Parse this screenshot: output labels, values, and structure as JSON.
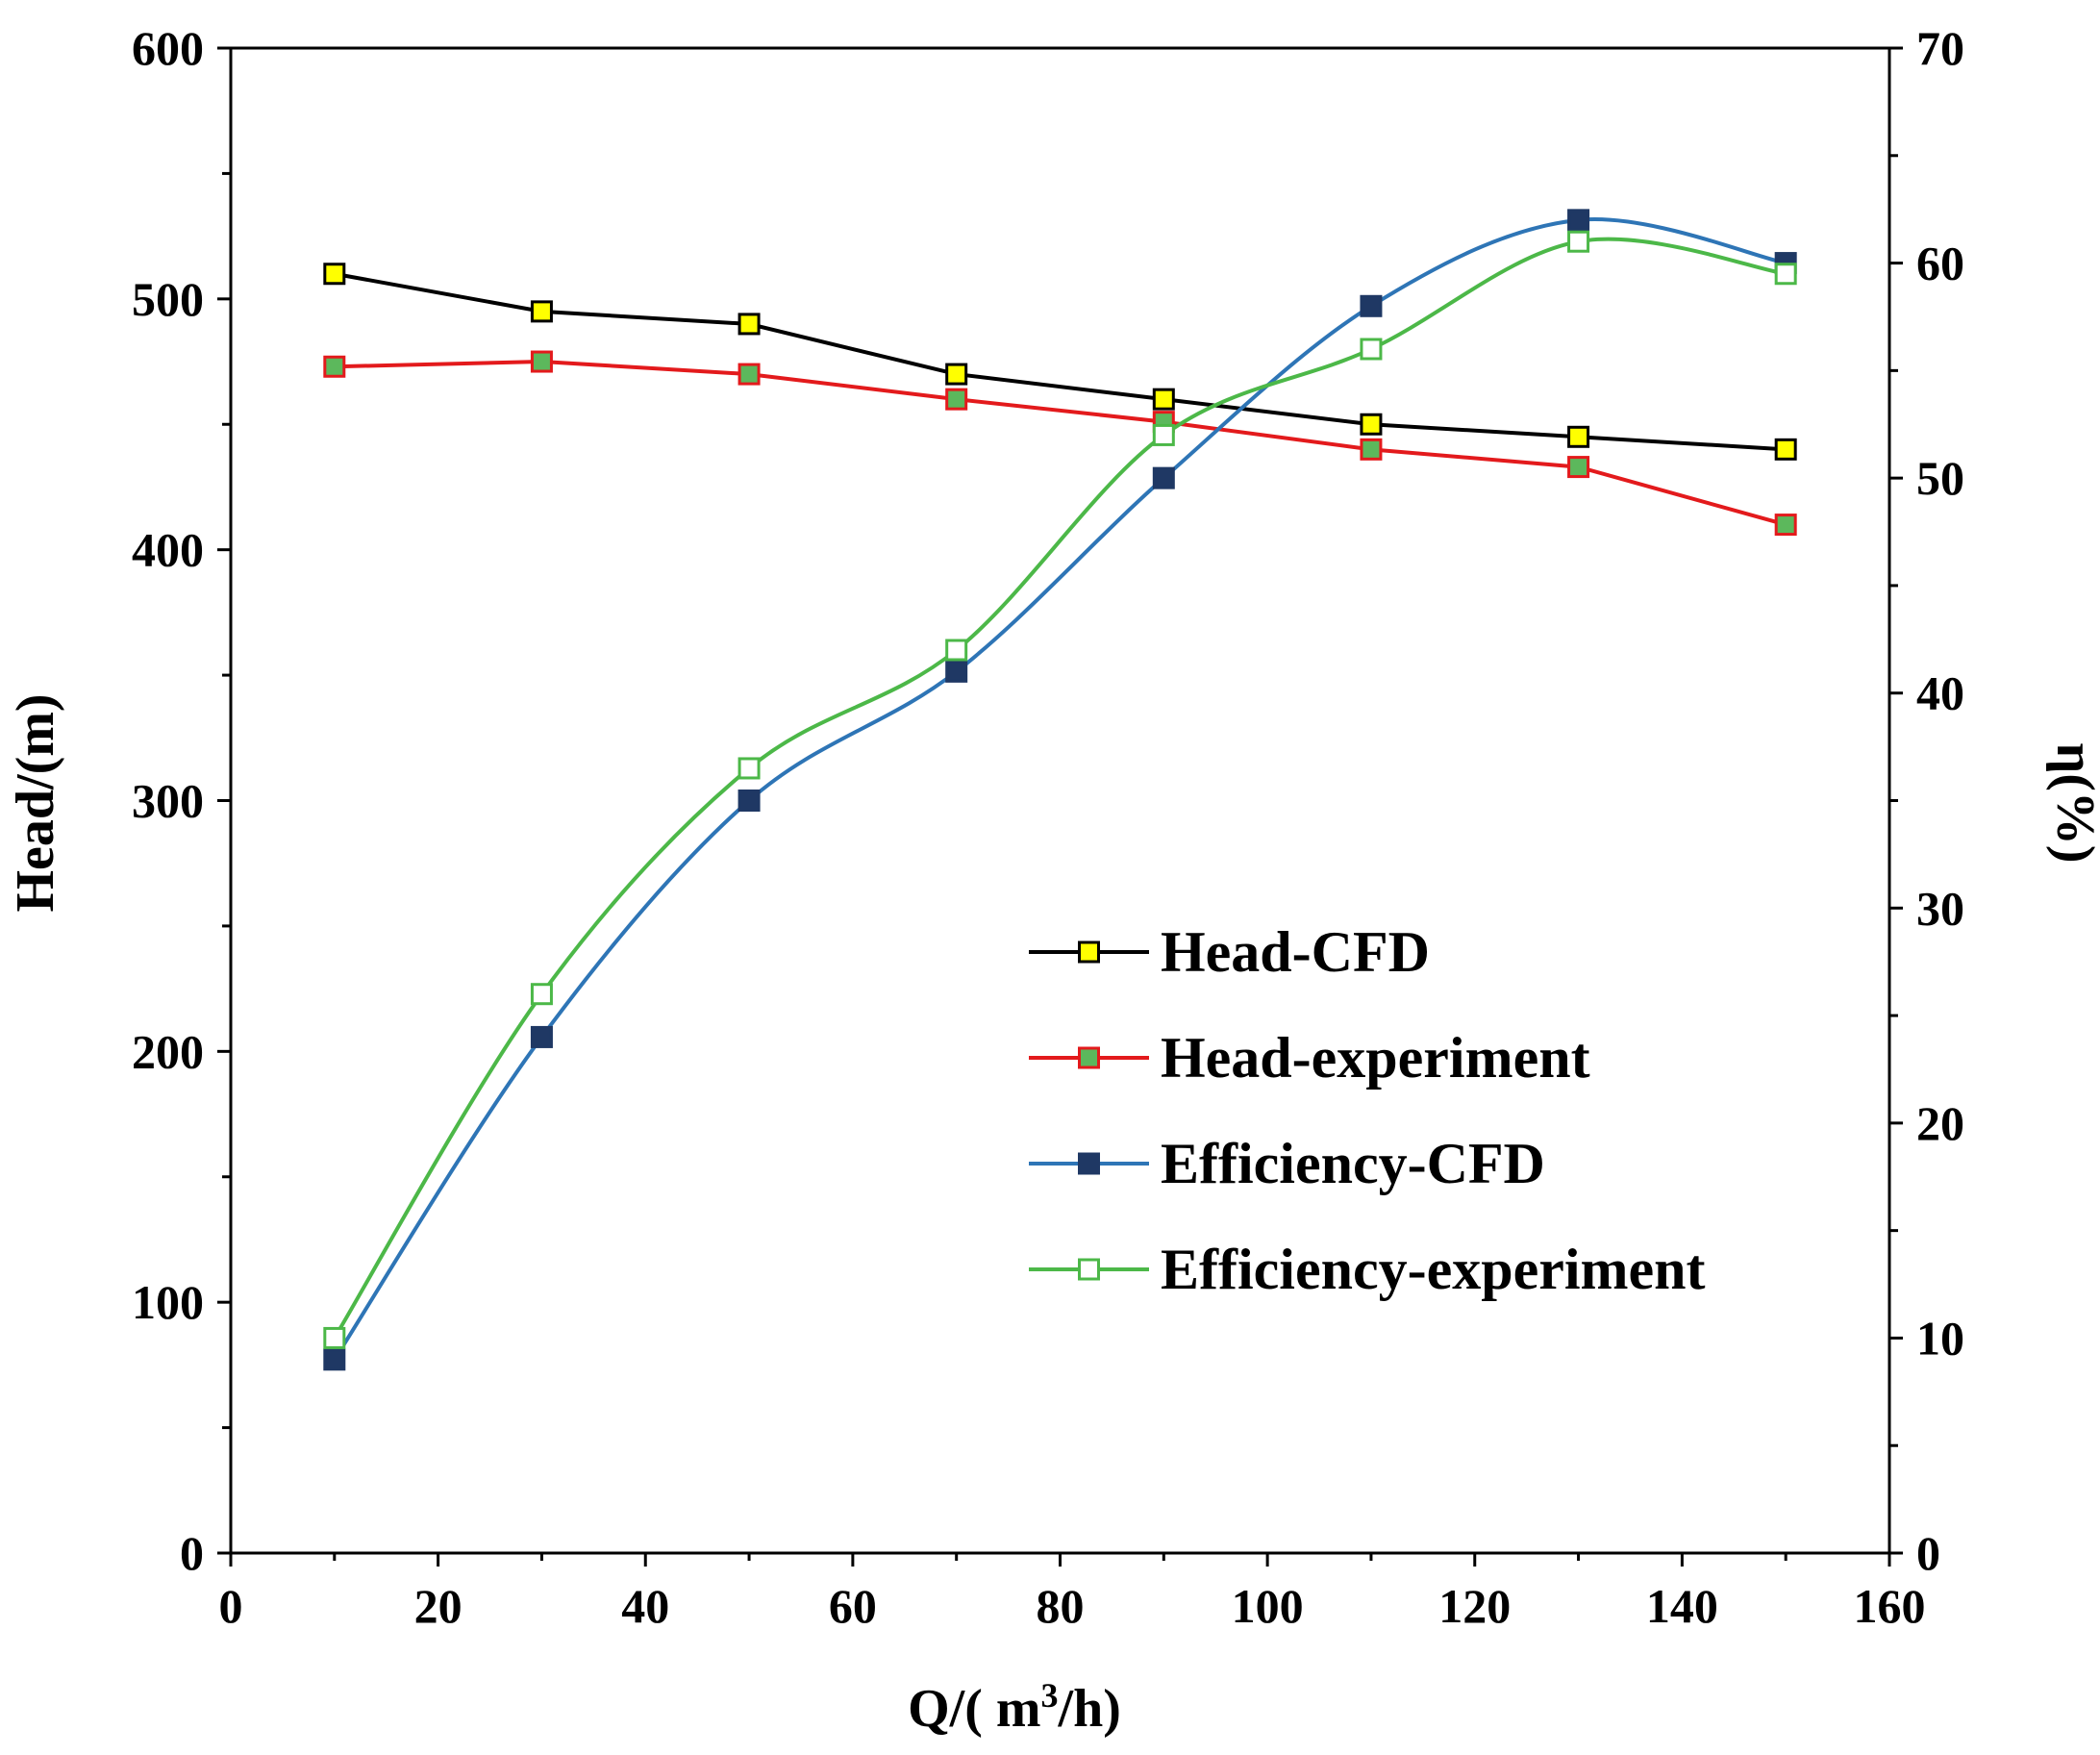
{
  "chart_data": {
    "type": "line",
    "title": "",
    "xlabel": {
      "prefix": "Q/( m",
      "sup": "3",
      "suffix": "/h)"
    },
    "ylabel_left": "Head/(m)",
    "ylabel_right": "η(%)",
    "xlim": [
      0,
      160
    ],
    "ylim_left": [
      0,
      600
    ],
    "ylim_right": [
      0,
      70
    ],
    "x_ticks": [
      "0",
      "20",
      "40",
      "60",
      "80",
      "100",
      "120",
      "140",
      "160"
    ],
    "y_left_ticks": [
      "0",
      "100",
      "200",
      "300",
      "400",
      "500",
      "600"
    ],
    "y_right_ticks": [
      "0",
      "10",
      "20",
      "30",
      "40",
      "50",
      "60",
      "70"
    ],
    "grid": false,
    "legend_position": "center-right",
    "x": [
      10,
      30,
      50,
      70,
      90,
      110,
      130,
      150
    ],
    "series": [
      {
        "name": "Head-CFD",
        "axis": "left",
        "values": [
          510,
          495,
          490,
          470,
          460,
          450,
          445,
          440
        ],
        "line_color": "#000000",
        "marker_fill": "#ffff00",
        "marker_stroke": "#000000",
        "smooth": false
      },
      {
        "name": "Head-experiment",
        "axis": "left",
        "values": [
          473,
          475,
          470,
          460,
          451,
          440,
          433,
          410
        ],
        "line_color": "#e31a1c",
        "marker_fill": "#5cb85c",
        "marker_stroke": "#e31a1c",
        "smooth": false
      },
      {
        "name": "Efficiency-CFD",
        "axis": "right",
        "values": [
          9,
          24,
          35,
          41,
          50,
          58,
          62,
          60
        ],
        "line_color": "#2e75b6",
        "marker_fill": "#1f3864",
        "marker_stroke": "#1f3864",
        "smooth": true
      },
      {
        "name": "Efficiency-experiment",
        "axis": "right",
        "values": [
          10,
          26,
          36.5,
          42,
          52,
          56,
          61,
          59.5
        ],
        "line_color": "#4cb848",
        "marker_fill": "#ffffff",
        "marker_stroke": "#4cb848",
        "smooth": true
      }
    ]
  }
}
